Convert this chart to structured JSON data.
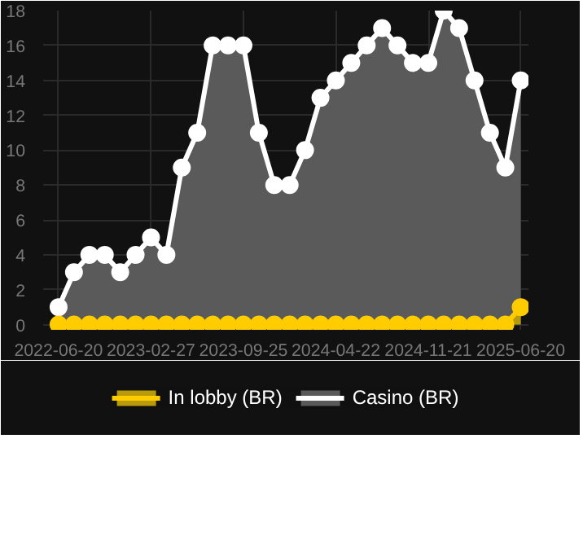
{
  "chart_data": {
    "type": "area",
    "categories": [
      "2022-06-20",
      null,
      null,
      null,
      null,
      null,
      "2023-02-27",
      null,
      null,
      null,
      null,
      null,
      "2023-09-25",
      null,
      null,
      null,
      null,
      null,
      "2024-04-22",
      null,
      null,
      null,
      null,
      null,
      "2024-11-21",
      null,
      null,
      null,
      null,
      null,
      "2025-06-20"
    ],
    "series": [
      {
        "name": "In lobby (BR)",
        "color": "#ffcc00",
        "values": [
          0,
          0,
          0,
          0,
          0,
          0,
          0,
          0,
          0,
          0,
          0,
          0,
          0,
          0,
          0,
          0,
          0,
          0,
          0,
          0,
          0,
          0,
          0,
          0,
          0,
          0,
          0,
          0,
          0,
          0,
          1
        ]
      },
      {
        "name": "Casino (BR)",
        "color": "#ffffff",
        "values": [
          1,
          3,
          4,
          4,
          3,
          4,
          5,
          4,
          9,
          11,
          16,
          16,
          16,
          11,
          8,
          8,
          10,
          13,
          14,
          15,
          16,
          17,
          16,
          15,
          15,
          18,
          17,
          14,
          11,
          9,
          14
        ]
      }
    ],
    "ylim": [
      -0.3,
      18
    ],
    "yticks": [
      0,
      2,
      4,
      6,
      8,
      10,
      12,
      14,
      16,
      18
    ],
    "grid": true,
    "legend": "bottom",
    "marker": "circle"
  }
}
